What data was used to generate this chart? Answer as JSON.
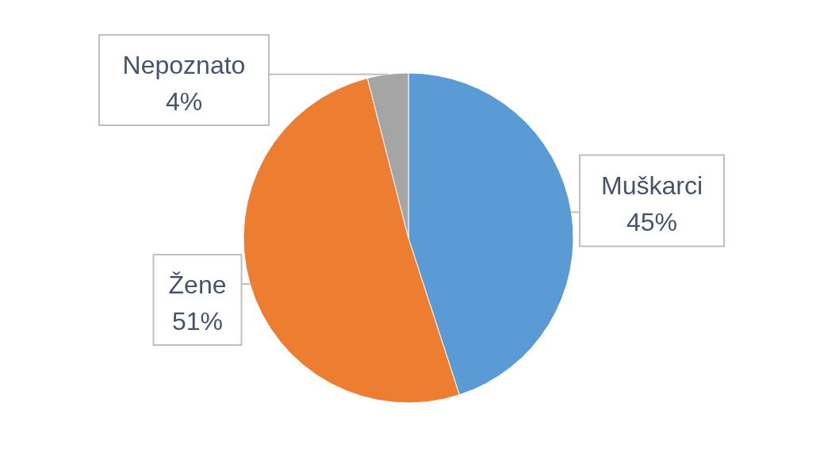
{
  "chart_data": {
    "type": "pie",
    "categories": [
      "Muškarci",
      "Žene",
      "Nepoznato"
    ],
    "values": [
      45,
      51,
      4
    ],
    "colors": [
      "#5b9bd5",
      "#ed7d31",
      "#a5a5a5"
    ],
    "value_labels": [
      "45%",
      "51%",
      "4%"
    ]
  }
}
